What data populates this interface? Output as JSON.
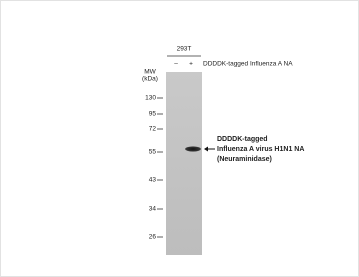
{
  "blot": {
    "cell_line": "293T",
    "lanes": [
      "–",
      "+"
    ],
    "lane_label": "DDDDK-tagged Influenza A NA",
    "mw_label": "MW",
    "mw_unit": "(kDa)",
    "markers": [
      130,
      95,
      72,
      55,
      43,
      34,
      26
    ],
    "annotation": [
      "DDDDK-tagged",
      "Influenza A virus H1N1 NA",
      "(Neuraminidase)"
    ]
  }
}
